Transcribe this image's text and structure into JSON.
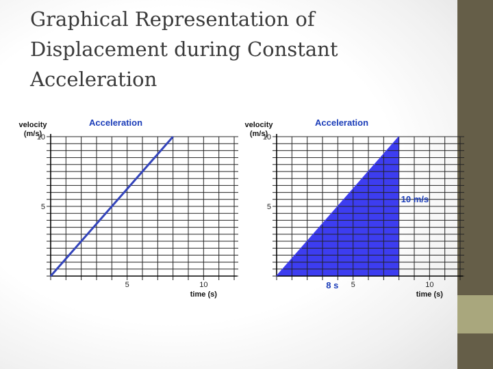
{
  "slide": {
    "title_lines": [
      "Graphical Representation of",
      "Displacement during Constant",
      "Acceleration"
    ],
    "colors": {
      "band": "#655e48",
      "band_accent": "#a9a77d",
      "series": "#3344bb",
      "fill": "#3d3df0",
      "title": "#1a3cb8"
    }
  },
  "chart_data": [
    {
      "type": "line",
      "title": "Acceleration",
      "ylabel_lines": [
        "velocity",
        "(m/s)"
      ],
      "xlabel": "time (s)",
      "xlim": [
        0,
        12
      ],
      "ylim": [
        0,
        10
      ],
      "xticks": [
        {
          "value": 5,
          "label": "5"
        },
        {
          "value": 10,
          "label": "10"
        }
      ],
      "yticks": [
        {
          "value": 5,
          "label": "5"
        },
        {
          "value": 10,
          "label": "10"
        }
      ],
      "grid": true,
      "series": [
        {
          "name": "velocity",
          "x": [
            0,
            8
          ],
          "y": [
            0,
            10
          ]
        }
      ],
      "shaded_area": false
    },
    {
      "type": "area",
      "title": "Acceleration",
      "ylabel_lines": [
        "velocity",
        "(m/s)"
      ],
      "xlabel": "time (s)",
      "xlim": [
        0,
        12
      ],
      "ylim": [
        0,
        10
      ],
      "xticks": [
        {
          "value": 5,
          "label": "5"
        },
        {
          "value": 10,
          "label": "10"
        }
      ],
      "yticks": [
        {
          "value": 5,
          "label": "5"
        },
        {
          "value": 10,
          "label": "10"
        }
      ],
      "grid": true,
      "series": [
        {
          "name": "velocity",
          "x": [
            0,
            8
          ],
          "y": [
            0,
            10
          ]
        }
      ],
      "shaded_area": true,
      "annotations": [
        {
          "text": "8 s",
          "x": 4,
          "y": 0,
          "anchor": "below-x-axis"
        },
        {
          "text": "10 m/s",
          "x": 8,
          "y": 5,
          "anchor": "right-of-edge"
        }
      ]
    }
  ]
}
